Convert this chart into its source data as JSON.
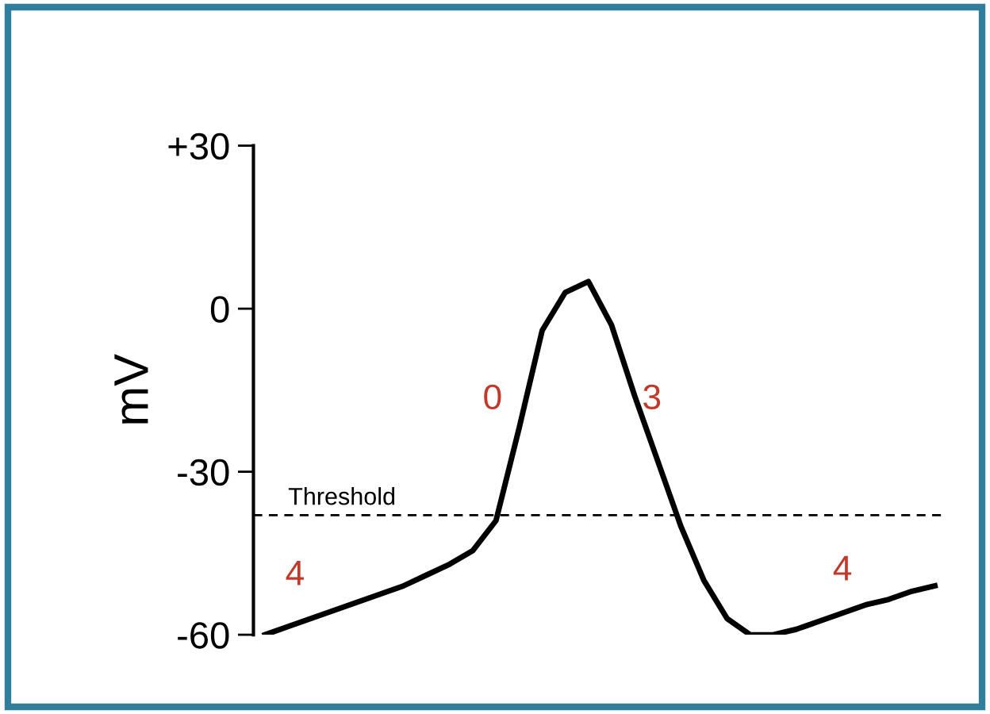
{
  "chart_data": {
    "type": "line",
    "ylabel": "mV",
    "categories": [
      null,
      null,
      null,
      null,
      null,
      null,
      null,
      null,
      null,
      null,
      null,
      null,
      null,
      null,
      null,
      null,
      null,
      null,
      null,
      null,
      null,
      null,
      null,
      null,
      null,
      null,
      null,
      null,
      null,
      null
    ],
    "series": [
      {
        "color": "#000000",
        "values": [
          -60,
          -58.5,
          -57,
          -55.5,
          -54,
          -52.5,
          -51,
          -49,
          -47,
          -44.5,
          -39,
          -22,
          -4,
          3,
          5,
          -3,
          -16,
          -28,
          -40,
          -50,
          -57,
          -60,
          -60,
          -59,
          -57.5,
          -56,
          -54.5,
          -53.5,
          -52,
          -51
        ]
      }
    ],
    "ylim": [
      -60,
      30
    ],
    "yticks": [
      {
        "value": 30,
        "label": "+30"
      },
      0,
      -30,
      -60
    ],
    "tick_labels": "y",
    "ref_lines": [
      {
        "axis": "y",
        "value": -38,
        "label": "Threshold",
        "color": "#000000",
        "line_style": "dashed"
      }
    ],
    "annotations": [
      "4",
      "0",
      "3",
      "4"
    ],
    "grid": false,
    "legend": false,
    "marker": "none",
    "line_style": "solid"
  }
}
